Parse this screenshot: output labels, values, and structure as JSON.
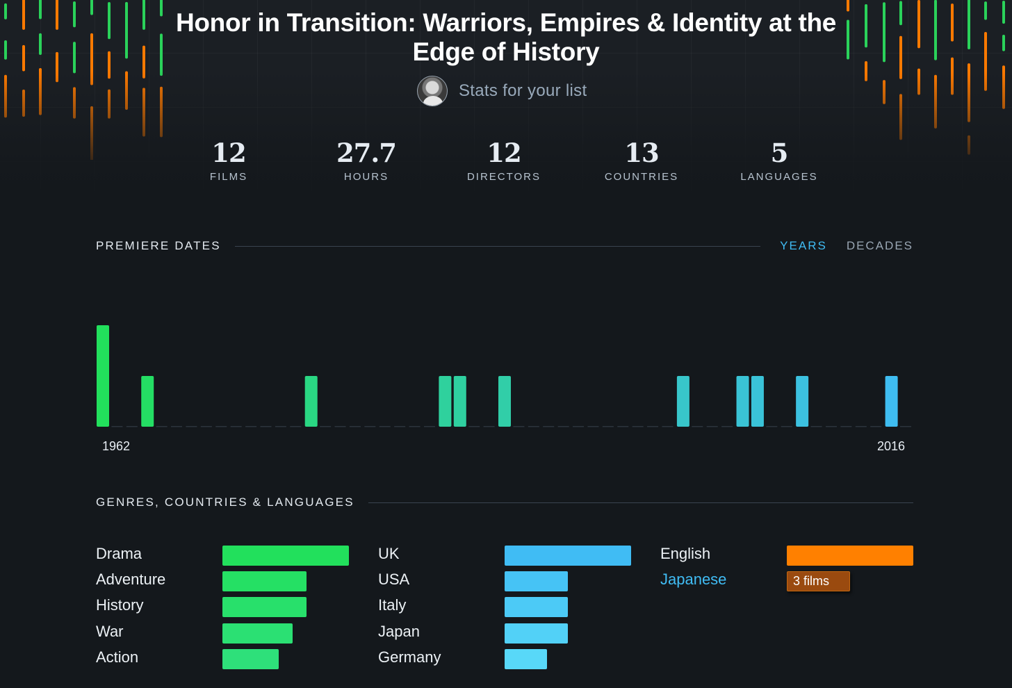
{
  "header": {
    "title": "Honor in Transition: Warriors, Empires & Identity at the Edge of History",
    "owner_text": "Stats for your list"
  },
  "stats": [
    {
      "value": "12",
      "label": "FILMS"
    },
    {
      "value": "27.7",
      "label": "HOURS"
    },
    {
      "value": "12",
      "label": "DIRECTORS"
    },
    {
      "value": "13",
      "label": "COUNTRIES"
    },
    {
      "value": "5",
      "label": "LANGUAGES"
    }
  ],
  "premiere": {
    "title": "PREMIERE DATES",
    "toggle_years": "YEARS",
    "toggle_decades": "DECADES",
    "active_toggle": "YEARS",
    "start_label": "1962",
    "end_label": "2016"
  },
  "breakdown": {
    "title": "GENRES, COUNTRIES & LANGUAGES",
    "genres": [
      {
        "label": "Drama",
        "value": 9
      },
      {
        "label": "Adventure",
        "value": 6
      },
      {
        "label": "History",
        "value": 6
      },
      {
        "label": "War",
        "value": 5
      },
      {
        "label": "Action",
        "value": 4
      }
    ],
    "countries": [
      {
        "label": "UK",
        "value": 6
      },
      {
        "label": "USA",
        "value": 3
      },
      {
        "label": "Italy",
        "value": 3
      },
      {
        "label": "Japan",
        "value": 3
      },
      {
        "label": "Germany",
        "value": 2
      }
    ],
    "languages": [
      {
        "label": "English",
        "value": 6
      },
      {
        "label": "Japanese",
        "value": 3,
        "highlight": true,
        "tooltip": "3 films"
      }
    ]
  },
  "colors": {
    "green": "#22e05c",
    "blue": "#40bcf4",
    "orange": "#ff8000",
    "background": "#14181c"
  },
  "chart_data": {
    "type": "bar",
    "xlabel": "",
    "ylabel": "",
    "x_range": [
      1962,
      2016
    ],
    "x": [
      1962,
      1965,
      1976,
      1985,
      1986,
      1989,
      2001,
      2005,
      2006,
      2009,
      2015
    ],
    "values": [
      2,
      1,
      1,
      1,
      1,
      1,
      1,
      1,
      1,
      1,
      1
    ],
    "ylim": [
      0,
      2
    ]
  }
}
